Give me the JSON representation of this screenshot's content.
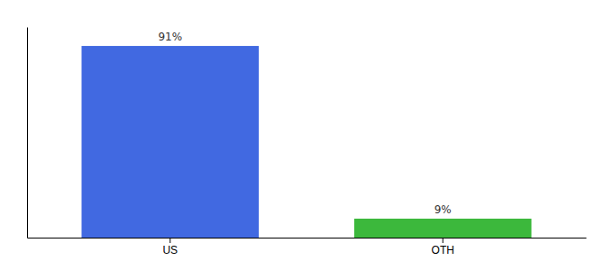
{
  "chart_data": {
    "type": "bar",
    "categories": [
      "US",
      "OTH"
    ],
    "values": [
      91,
      9
    ],
    "value_labels": [
      "91%",
      "9%"
    ],
    "colors": [
      "#4169E1",
      "#3CB83C"
    ],
    "ylim": [
      0,
      100
    ],
    "data_labels": true,
    "tick_labels": "x",
    "grid": false
  }
}
